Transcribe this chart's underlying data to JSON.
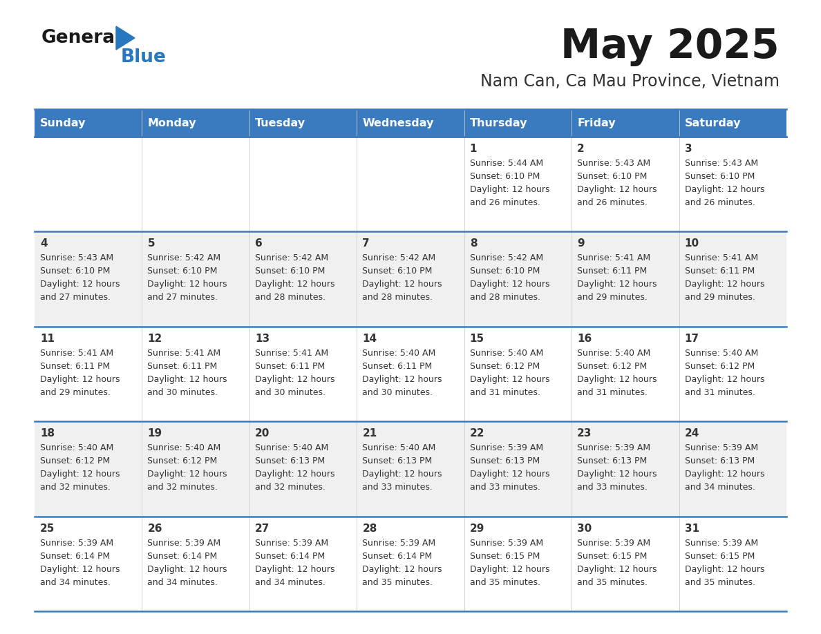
{
  "title": "May 2025",
  "subtitle": "Nam Can, Ca Mau Province, Vietnam",
  "days_of_week": [
    "Sunday",
    "Monday",
    "Tuesday",
    "Wednesday",
    "Thursday",
    "Friday",
    "Saturday"
  ],
  "header_bg": "#3a7abf",
  "header_text": "#ffffff",
  "row_bg_odd": "#f0f0f0",
  "row_bg_even": "#ffffff",
  "cell_text": "#333333",
  "title_color": "#1a1a1a",
  "subtitle_color": "#333333",
  "divider_color": "#3a7abf",
  "logo_general_color": "#1a1a1a",
  "logo_blue_color": "#2878c0",
  "logo_triangle_color": "#2878c0",
  "calendar_data": [
    [
      null,
      null,
      null,
      null,
      {
        "day": 1,
        "sunrise": "5:44 AM",
        "sunset": "6:10 PM",
        "daylight": "12 hours",
        "daylight2": "and 26 minutes."
      },
      {
        "day": 2,
        "sunrise": "5:43 AM",
        "sunset": "6:10 PM",
        "daylight": "12 hours",
        "daylight2": "and 26 minutes."
      },
      {
        "day": 3,
        "sunrise": "5:43 AM",
        "sunset": "6:10 PM",
        "daylight": "12 hours",
        "daylight2": "and 26 minutes."
      }
    ],
    [
      {
        "day": 4,
        "sunrise": "5:43 AM",
        "sunset": "6:10 PM",
        "daylight": "12 hours",
        "daylight2": "and 27 minutes."
      },
      {
        "day": 5,
        "sunrise": "5:42 AM",
        "sunset": "6:10 PM",
        "daylight": "12 hours",
        "daylight2": "and 27 minutes."
      },
      {
        "day": 6,
        "sunrise": "5:42 AM",
        "sunset": "6:10 PM",
        "daylight": "12 hours",
        "daylight2": "and 28 minutes."
      },
      {
        "day": 7,
        "sunrise": "5:42 AM",
        "sunset": "6:10 PM",
        "daylight": "12 hours",
        "daylight2": "and 28 minutes."
      },
      {
        "day": 8,
        "sunrise": "5:42 AM",
        "sunset": "6:10 PM",
        "daylight": "12 hours",
        "daylight2": "and 28 minutes."
      },
      {
        "day": 9,
        "sunrise": "5:41 AM",
        "sunset": "6:11 PM",
        "daylight": "12 hours",
        "daylight2": "and 29 minutes."
      },
      {
        "day": 10,
        "sunrise": "5:41 AM",
        "sunset": "6:11 PM",
        "daylight": "12 hours",
        "daylight2": "and 29 minutes."
      }
    ],
    [
      {
        "day": 11,
        "sunrise": "5:41 AM",
        "sunset": "6:11 PM",
        "daylight": "12 hours",
        "daylight2": "and 29 minutes."
      },
      {
        "day": 12,
        "sunrise": "5:41 AM",
        "sunset": "6:11 PM",
        "daylight": "12 hours",
        "daylight2": "and 30 minutes."
      },
      {
        "day": 13,
        "sunrise": "5:41 AM",
        "sunset": "6:11 PM",
        "daylight": "12 hours",
        "daylight2": "and 30 minutes."
      },
      {
        "day": 14,
        "sunrise": "5:40 AM",
        "sunset": "6:11 PM",
        "daylight": "12 hours",
        "daylight2": "and 30 minutes."
      },
      {
        "day": 15,
        "sunrise": "5:40 AM",
        "sunset": "6:12 PM",
        "daylight": "12 hours",
        "daylight2": "and 31 minutes."
      },
      {
        "day": 16,
        "sunrise": "5:40 AM",
        "sunset": "6:12 PM",
        "daylight": "12 hours",
        "daylight2": "and 31 minutes."
      },
      {
        "day": 17,
        "sunrise": "5:40 AM",
        "sunset": "6:12 PM",
        "daylight": "12 hours",
        "daylight2": "and 31 minutes."
      }
    ],
    [
      {
        "day": 18,
        "sunrise": "5:40 AM",
        "sunset": "6:12 PM",
        "daylight": "12 hours",
        "daylight2": "and 32 minutes."
      },
      {
        "day": 19,
        "sunrise": "5:40 AM",
        "sunset": "6:12 PM",
        "daylight": "12 hours",
        "daylight2": "and 32 minutes."
      },
      {
        "day": 20,
        "sunrise": "5:40 AM",
        "sunset": "6:13 PM",
        "daylight": "12 hours",
        "daylight2": "and 32 minutes."
      },
      {
        "day": 21,
        "sunrise": "5:40 AM",
        "sunset": "6:13 PM",
        "daylight": "12 hours",
        "daylight2": "and 33 minutes."
      },
      {
        "day": 22,
        "sunrise": "5:39 AM",
        "sunset": "6:13 PM",
        "daylight": "12 hours",
        "daylight2": "and 33 minutes."
      },
      {
        "day": 23,
        "sunrise": "5:39 AM",
        "sunset": "6:13 PM",
        "daylight": "12 hours",
        "daylight2": "and 33 minutes."
      },
      {
        "day": 24,
        "sunrise": "5:39 AM",
        "sunset": "6:13 PM",
        "daylight": "12 hours",
        "daylight2": "and 34 minutes."
      }
    ],
    [
      {
        "day": 25,
        "sunrise": "5:39 AM",
        "sunset": "6:14 PM",
        "daylight": "12 hours",
        "daylight2": "and 34 minutes."
      },
      {
        "day": 26,
        "sunrise": "5:39 AM",
        "sunset": "6:14 PM",
        "daylight": "12 hours",
        "daylight2": "and 34 minutes."
      },
      {
        "day": 27,
        "sunrise": "5:39 AM",
        "sunset": "6:14 PM",
        "daylight": "12 hours",
        "daylight2": "and 34 minutes."
      },
      {
        "day": 28,
        "sunrise": "5:39 AM",
        "sunset": "6:14 PM",
        "daylight": "12 hours",
        "daylight2": "and 35 minutes."
      },
      {
        "day": 29,
        "sunrise": "5:39 AM",
        "sunset": "6:15 PM",
        "daylight": "12 hours",
        "daylight2": "and 35 minutes."
      },
      {
        "day": 30,
        "sunrise": "5:39 AM",
        "sunset": "6:15 PM",
        "daylight": "12 hours",
        "daylight2": "and 35 minutes."
      },
      {
        "day": 31,
        "sunrise": "5:39 AM",
        "sunset": "6:15 PM",
        "daylight": "12 hours",
        "daylight2": "and 35 minutes."
      }
    ]
  ]
}
